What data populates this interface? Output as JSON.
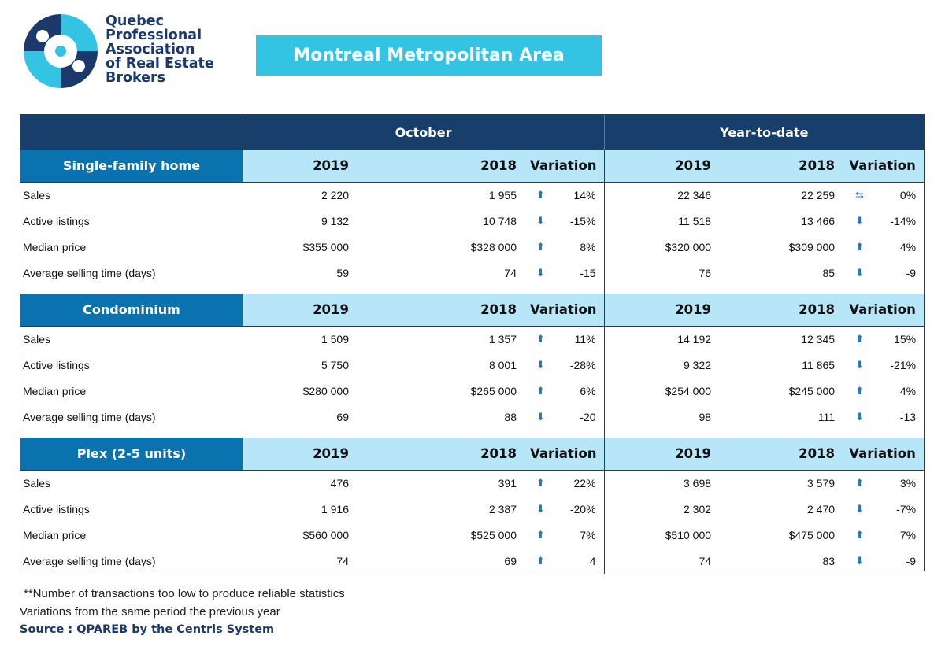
{
  "logo": {
    "lines": [
      "Quebec",
      "Professional",
      "Association",
      "of Real Estate",
      "Brokers"
    ],
    "icon": "qpareb-circle-logo-icon",
    "colors": {
      "dark": "#1b3a6b",
      "light": "#33c4e3"
    }
  },
  "title": "Montreal Metropolitan Area",
  "table": {
    "period_headers": [
      "October",
      "Year-to-date"
    ],
    "column_headers": [
      "2019",
      "2018",
      "Variation"
    ],
    "sections": [
      {
        "label": "Single-family home",
        "rows": [
          {
            "label": "Sales",
            "oct_2019": "2 220",
            "oct_2018": "1 955",
            "oct_trend": "up",
            "oct_var": "14%",
            "ytd_2019": "22 346",
            "ytd_2018": "22 259",
            "ytd_trend": "flat",
            "ytd_var": "0%"
          },
          {
            "label": "Active listings",
            "oct_2019": "9 132",
            "oct_2018": "10 748",
            "oct_trend": "down",
            "oct_var": "-15%",
            "ytd_2019": "11 518",
            "ytd_2018": "13 466",
            "ytd_trend": "down",
            "ytd_var": "-14%"
          },
          {
            "label": "Median price",
            "oct_2019": "$355 000",
            "oct_2018": "$328 000",
            "oct_trend": "up",
            "oct_var": "8%",
            "ytd_2019": "$320 000",
            "ytd_2018": "$309 000",
            "ytd_trend": "up",
            "ytd_var": "4%"
          },
          {
            "label": "Average selling time (days)",
            "oct_2019": "59",
            "oct_2018": "74",
            "oct_trend": "down",
            "oct_var": "-15",
            "ytd_2019": "76",
            "ytd_2018": "85",
            "ytd_trend": "down",
            "ytd_var": "-9"
          }
        ]
      },
      {
        "label": "Condominium",
        "rows": [
          {
            "label": "Sales",
            "oct_2019": "1 509",
            "oct_2018": "1 357",
            "oct_trend": "up",
            "oct_var": "11%",
            "ytd_2019": "14 192",
            "ytd_2018": "12 345",
            "ytd_trend": "up",
            "ytd_var": "15%"
          },
          {
            "label": "Active listings",
            "oct_2019": "5 750",
            "oct_2018": "8 001",
            "oct_trend": "down",
            "oct_var": "-28%",
            "ytd_2019": "9 322",
            "ytd_2018": "11 865",
            "ytd_trend": "down",
            "ytd_var": "-21%"
          },
          {
            "label": "Median price",
            "oct_2019": "$280 000",
            "oct_2018": "$265 000",
            "oct_trend": "up",
            "oct_var": "6%",
            "ytd_2019": "$254 000",
            "ytd_2018": "$245 000",
            "ytd_trend": "up",
            "ytd_var": "4%"
          },
          {
            "label": "Average selling time (days)",
            "oct_2019": "69",
            "oct_2018": "88",
            "oct_trend": "down",
            "oct_var": "-20",
            "ytd_2019": "98",
            "ytd_2018": "111",
            "ytd_trend": "down",
            "ytd_var": "-13"
          }
        ]
      },
      {
        "label": "Plex (2-5 units)",
        "rows": [
          {
            "label": "Sales",
            "oct_2019": "476",
            "oct_2018": "391",
            "oct_trend": "up",
            "oct_var": "22%",
            "ytd_2019": "3 698",
            "ytd_2018": "3 579",
            "ytd_trend": "up",
            "ytd_var": "3%"
          },
          {
            "label": "Active listings",
            "oct_2019": "1 916",
            "oct_2018": "2 387",
            "oct_trend": "down",
            "oct_var": "-20%",
            "ytd_2019": "2 302",
            "ytd_2018": "2 470",
            "ytd_trend": "down",
            "ytd_var": "-7%"
          },
          {
            "label": "Median price",
            "oct_2019": "$560 000",
            "oct_2018": "$525 000",
            "oct_trend": "up",
            "oct_var": "7%",
            "ytd_2019": "$510 000",
            "ytd_2018": "$475 000",
            "ytd_trend": "up",
            "ytd_var": "7%"
          },
          {
            "label": "Average selling time (days)",
            "oct_2019": "74",
            "oct_2018": "69",
            "oct_trend": "up",
            "oct_var": "4",
            "ytd_2019": "74",
            "ytd_2018": "83",
            "ytd_trend": "down",
            "ytd_var": "-9"
          }
        ]
      }
    ],
    "trend_icons": {
      "up": "arrow-up-icon",
      "down": "arrow-down-icon",
      "flat": "swap-arrows-icon"
    },
    "colors": {
      "header_bg": "#183f6b",
      "section_label_bg": "#0b72b0",
      "section_band_bg": "#b7e6f8",
      "arrow": "#1a7bbf"
    }
  },
  "footnotes": {
    "note1": "**Number of transactions too low to produce reliable statistics",
    "note2": "Variations from the same period the previous year",
    "source": "Source : QPAREB by the Centris System"
  }
}
